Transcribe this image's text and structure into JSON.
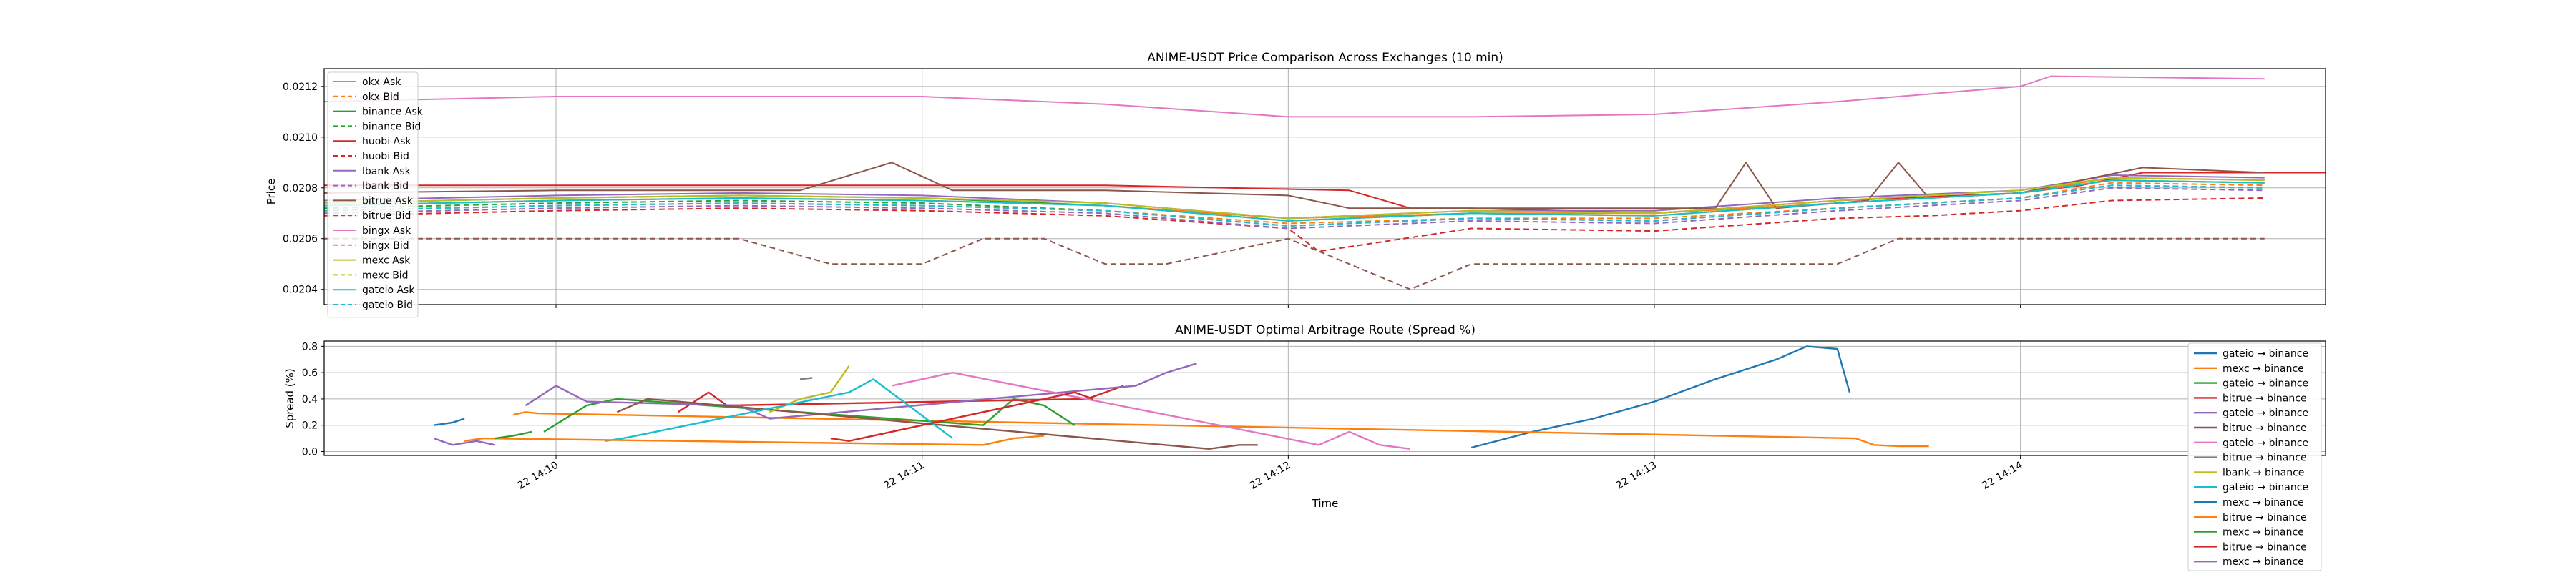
{
  "chart_data": [
    {
      "type": "line",
      "title": "ANIME-USDT Price Comparison Across Exchanges (10 min)",
      "ylabel": "Price",
      "xlabel": "",
      "xlim": [
        "22 14:09:22",
        "22 14:14:50"
      ],
      "ylim": [
        0.02034,
        0.02127
      ],
      "yticks": [
        0.0204,
        0.0206,
        0.0208,
        0.021,
        0.0212
      ],
      "ytick_labels": [
        "0.0204",
        "0.0206",
        "0.0208",
        "0.0210",
        "0.0212"
      ],
      "xticks": [
        "22 14:10",
        "22 14:11",
        "22 14:12",
        "22 14:13",
        "22 14:14"
      ],
      "grid": true,
      "legend_position": "upper-left",
      "series": [
        {
          "name": "okx Ask",
          "color": "#ff7f0e",
          "style": "solid",
          "x": [
            "14:09:22",
            "14:10:00",
            "14:10:30",
            "14:11:00",
            "14:11:30",
            "14:12:00",
            "14:12:30",
            "14:13:00",
            "14:13:30",
            "14:14:00",
            "14:14:15",
            "14:14:40"
          ],
          "y": [
            0.02073,
            0.02075,
            0.02076,
            0.02075,
            0.02073,
            0.02068,
            0.0207,
            0.0207,
            0.02074,
            0.02078,
            0.02084,
            0.02083
          ]
        },
        {
          "name": "okx Bid",
          "color": "#ff7f0e",
          "style": "dashed",
          "x": [
            "14:09:22",
            "14:10:00",
            "14:10:30",
            "14:11:00",
            "14:11:30",
            "14:12:00",
            "14:12:30",
            "14:13:00",
            "14:13:30",
            "14:14:00",
            "14:14:15",
            "14:14:40"
          ],
          "y": [
            0.02071,
            0.02073,
            0.02074,
            0.02073,
            0.02071,
            0.02066,
            0.02068,
            0.02068,
            0.02072,
            0.02076,
            0.02082,
            0.02081
          ]
        },
        {
          "name": "binance Ask",
          "color": "#2ca02c",
          "style": "solid",
          "x": [
            "14:09:22",
            "14:10:00",
            "14:10:30",
            "14:11:00",
            "14:11:30",
            "14:12:00",
            "14:12:30",
            "14:13:00",
            "14:13:30",
            "14:14:00",
            "14:14:15",
            "14:14:40"
          ],
          "y": [
            0.02074,
            0.02076,
            0.02077,
            0.02076,
            0.02073,
            0.02067,
            0.0207,
            0.02069,
            0.02074,
            0.02078,
            0.02083,
            0.02082
          ]
        },
        {
          "name": "binance Bid",
          "color": "#2ca02c",
          "style": "dashed",
          "x": [
            "14:09:22",
            "14:10:00",
            "14:10:30",
            "14:11:00",
            "14:11:30",
            "14:12:00",
            "14:12:30",
            "14:13:00",
            "14:13:30",
            "14:14:00",
            "14:14:15",
            "14:14:40"
          ],
          "y": [
            0.02072,
            0.02074,
            0.02075,
            0.02074,
            0.02071,
            0.02065,
            0.02068,
            0.02067,
            0.02072,
            0.02076,
            0.02081,
            0.0208
          ]
        },
        {
          "name": "huobi Ask",
          "color": "#d62728",
          "style": "solid",
          "x": [
            "14:09:22",
            "14:10:00",
            "14:10:30",
            "14:11:00",
            "14:11:30",
            "14:11:50",
            "14:12:10",
            "14:12:20",
            "14:12:30",
            "14:13:00",
            "14:13:30",
            "14:14:00",
            "14:14:10",
            "14:14:20",
            "14:14:50"
          ],
          "y": [
            0.02081,
            0.02081,
            0.02081,
            0.02081,
            0.02081,
            0.0208,
            0.02079,
            0.02072,
            0.02072,
            0.0207,
            0.02075,
            0.02078,
            0.02081,
            0.02086,
            0.02086
          ]
        },
        {
          "name": "huobi Bid",
          "color": "#d62728",
          "style": "dashed",
          "x": [
            "14:09:22",
            "14:10:00",
            "14:10:30",
            "14:11:00",
            "14:11:30",
            "14:12:00",
            "14:12:05",
            "14:12:30",
            "14:13:00",
            "14:13:30",
            "14:13:45",
            "14:14:00",
            "14:14:15",
            "14:14:40"
          ],
          "y": [
            0.02069,
            0.02071,
            0.02072,
            0.02071,
            0.02069,
            0.02064,
            0.02055,
            0.02064,
            0.02063,
            0.02068,
            0.02069,
            0.02071,
            0.02075,
            0.02076
          ]
        },
        {
          "name": "lbank Ask",
          "color": "#9467bd",
          "style": "solid",
          "x": [
            "14:09:22",
            "14:10:00",
            "14:10:30",
            "14:11:00",
            "14:11:30",
            "14:12:00",
            "14:12:30",
            "14:13:00",
            "14:13:30",
            "14:14:00",
            "14:14:15",
            "14:14:40"
          ],
          "y": [
            0.02075,
            0.02077,
            0.02078,
            0.02077,
            0.02074,
            0.02068,
            0.02071,
            0.02071,
            0.02076,
            0.02079,
            0.02085,
            0.02084
          ]
        },
        {
          "name": "lbank Bid",
          "color": "#9467bd",
          "style": "dashed",
          "x": [
            "14:09:22",
            "14:10:00",
            "14:10:30",
            "14:11:00",
            "14:11:30",
            "14:12:00",
            "14:12:30",
            "14:13:00",
            "14:13:30",
            "14:14:00",
            "14:14:15",
            "14:14:40"
          ],
          "y": [
            0.0207,
            0.02072,
            0.02073,
            0.02072,
            0.0207,
            0.02064,
            0.02067,
            0.02066,
            0.02071,
            0.02075,
            0.0208,
            0.02079
          ]
        },
        {
          "name": "bitrue Ask",
          "color": "#8c564b",
          "style": "solid",
          "x": [
            "14:09:22",
            "14:10:00",
            "14:10:40",
            "14:10:55",
            "14:11:05",
            "14:11:30",
            "14:12:00",
            "14:12:10",
            "14:12:30",
            "14:13:00",
            "14:13:10",
            "14:13:15",
            "14:13:20",
            "14:13:35",
            "14:13:40",
            "14:13:45",
            "14:14:00",
            "14:14:20",
            "14:14:40"
          ],
          "y": [
            0.02078,
            0.02079,
            0.02079,
            0.0209,
            0.02079,
            0.02079,
            0.02077,
            0.02072,
            0.02072,
            0.02072,
            0.02072,
            0.0209,
            0.02072,
            0.02075,
            0.0209,
            0.02076,
            0.02078,
            0.02088,
            0.02086
          ]
        },
        {
          "name": "bitrue Bid",
          "color": "#8c564b",
          "style": "dashed",
          "x": [
            "14:09:22",
            "14:10:30",
            "14:10:45",
            "14:11:00",
            "14:11:10",
            "14:11:20",
            "14:11:30",
            "14:11:40",
            "14:12:00",
            "14:12:20",
            "14:12:30",
            "14:13:00",
            "14:13:30",
            "14:13:40",
            "14:14:00",
            "14:14:40"
          ],
          "y": [
            0.0206,
            0.0206,
            0.0205,
            0.0205,
            0.0206,
            0.0206,
            0.0205,
            0.0205,
            0.0206,
            0.0204,
            0.0205,
            0.0205,
            0.0205,
            0.0206,
            0.0206,
            0.0206
          ]
        },
        {
          "name": "bingx Ask",
          "color": "#e377c2",
          "style": "solid",
          "x": [
            "14:09:22",
            "14:10:00",
            "14:10:30",
            "14:11:00",
            "14:11:30",
            "14:12:00",
            "14:12:30",
            "14:13:00",
            "14:13:30",
            "14:14:00",
            "14:14:05",
            "14:14:40"
          ],
          "y": [
            0.02114,
            0.02116,
            0.02116,
            0.02116,
            0.02113,
            0.02108,
            0.02108,
            0.02109,
            0.02114,
            0.0212,
            0.02124,
            0.02123
          ]
        },
        {
          "name": "bingx Bid",
          "color": "#e377c2",
          "style": "dashed",
          "x": [
            "14:09:22",
            "14:10:00",
            "14:10:30",
            "14:11:00",
            "14:11:30",
            "14:12:00",
            "14:12:30",
            "14:13:00",
            "14:13:30",
            "14:14:00",
            "14:14:15",
            "14:14:40"
          ],
          "y": [
            0.02071,
            0.02073,
            0.02074,
            0.02073,
            0.02071,
            0.02065,
            0.02068,
            0.02067,
            0.02072,
            0.02076,
            0.02081,
            0.0208
          ]
        },
        {
          "name": "mexc Ask",
          "color": "#bcbd22",
          "style": "solid",
          "x": [
            "14:09:22",
            "14:10:00",
            "14:10:30",
            "14:11:00",
            "14:11:30",
            "14:12:00",
            "14:12:30",
            "14:13:00",
            "14:13:30",
            "14:14:00",
            "14:14:15",
            "14:14:40"
          ],
          "y": [
            0.02074,
            0.02076,
            0.02077,
            0.02076,
            0.02074,
            0.02068,
            0.02071,
            0.0207,
            0.02075,
            0.02079,
            0.02084,
            0.02083
          ]
        },
        {
          "name": "mexc Bid",
          "color": "#bcbd22",
          "style": "dashed",
          "x": [
            "14:09:22",
            "14:10:00",
            "14:10:30",
            "14:11:00",
            "14:11:30",
            "14:12:00",
            "14:12:30",
            "14:13:00",
            "14:13:30",
            "14:14:00",
            "14:14:15",
            "14:14:40"
          ],
          "y": [
            0.02073,
            0.02075,
            0.02076,
            0.02075,
            0.02073,
            0.02067,
            0.0207,
            0.02069,
            0.02074,
            0.02078,
            0.02083,
            0.02082
          ]
        },
        {
          "name": "gateio Ask",
          "color": "#17becf",
          "style": "solid",
          "x": [
            "14:09:22",
            "14:10:00",
            "14:10:30",
            "14:11:00",
            "14:11:30",
            "14:12:00",
            "14:12:30",
            "14:13:00",
            "14:13:30",
            "14:14:00",
            "14:14:15",
            "14:14:40"
          ],
          "y": [
            0.02073,
            0.02075,
            0.02076,
            0.02075,
            0.02073,
            0.02067,
            0.0207,
            0.02069,
            0.02074,
            0.02078,
            0.02083,
            0.02082
          ]
        },
        {
          "name": "gateio Bid",
          "color": "#17becf",
          "style": "dashed",
          "x": [
            "14:09:22",
            "14:10:00",
            "14:10:30",
            "14:11:00",
            "14:11:30",
            "14:12:00",
            "14:12:30",
            "14:13:00",
            "14:13:30",
            "14:14:00",
            "14:14:15",
            "14:14:40"
          ],
          "y": [
            0.02071,
            0.02073,
            0.02074,
            0.02073,
            0.02071,
            0.02065,
            0.02068,
            0.02067,
            0.02072,
            0.02076,
            0.02081,
            0.0208
          ]
        }
      ]
    },
    {
      "type": "line",
      "title": "ANIME-USDT Optimal Arbitrage Route (Spread %)",
      "xlabel": "Time",
      "ylabel": "Spread (%)",
      "xlim": [
        "22 14:09:22",
        "22 14:14:50"
      ],
      "ylim": [
        -0.03,
        0.84
      ],
      "yticks": [
        0.0,
        0.2,
        0.4,
        0.6,
        0.8
      ],
      "ytick_labels": [
        "0.0",
        "0.2",
        "0.4",
        "0.6",
        "0.8"
      ],
      "xticks": [
        "22 14:10",
        "22 14:11",
        "22 14:12",
        "22 14:13",
        "22 14:14"
      ],
      "grid": true,
      "legend_position": "right",
      "series": [
        {
          "name": "gateio → binance",
          "color": "#1f77b4",
          "x": [
            "14:12:30",
            "14:12:40",
            "14:12:50",
            "14:13:00",
            "14:13:10",
            "14:13:20",
            "14:13:25",
            "14:13:30",
            "14:13:32"
          ],
          "y": [
            0.03,
            0.15,
            0.25,
            0.38,
            0.55,
            0.7,
            0.8,
            0.78,
            0.45
          ]
        },
        {
          "name": "mexc → binance",
          "color": "#ff7f0e",
          "x": [
            "14:09:53",
            "14:09:55",
            "14:09:57",
            "14:13:33",
            "14:13:36",
            "14:13:40",
            "14:13:45"
          ],
          "y": [
            0.28,
            0.3,
            0.29,
            0.1,
            0.05,
            0.04,
            0.04
          ]
        },
        {
          "name": "gateio → binance",
          "color": "#2ca02c",
          "x": [
            "14:09:58",
            "14:10:05",
            "14:10:10",
            "14:11:10",
            "14:11:15",
            "14:11:20",
            "14:11:25"
          ],
          "y": [
            0.15,
            0.35,
            0.4,
            0.2,
            0.4,
            0.35,
            0.2
          ]
        },
        {
          "name": "bitrue → binance",
          "color": "#d62728",
          "x": [
            "14:10:20",
            "14:10:25",
            "14:10:28",
            "14:11:27",
            "14:11:30",
            "14:11:33"
          ],
          "y": [
            0.3,
            0.45,
            0.35,
            0.4,
            0.45,
            0.5
          ]
        },
        {
          "name": "gateio → binance",
          "color": "#9467bd",
          "x": [
            "14:09:55",
            "14:10:00",
            "14:10:05",
            "14:10:30",
            "14:10:35",
            "14:11:35",
            "14:11:40",
            "14:11:45"
          ],
          "y": [
            0.35,
            0.5,
            0.38,
            0.35,
            0.25,
            0.5,
            0.6,
            0.67
          ]
        },
        {
          "name": "bitrue → binance",
          "color": "#8c564b",
          "x": [
            "14:10:10",
            "14:10:15",
            "14:10:20",
            "14:11:47",
            "14:11:52",
            "14:11:55"
          ],
          "y": [
            0.3,
            0.4,
            0.38,
            0.02,
            0.05,
            0.05
          ]
        },
        {
          "name": "gateio → binance",
          "color": "#e377c2",
          "x": [
            "14:10:55",
            "14:11:00",
            "14:11:05",
            "14:12:05",
            "14:12:10",
            "14:12:15",
            "14:12:20"
          ],
          "y": [
            0.5,
            0.55,
            0.6,
            0.05,
            0.15,
            0.05,
            0.02
          ]
        },
        {
          "name": "bitrue → binance",
          "color": "#7f7f7f",
          "x": [
            "14:10:40",
            "14:10:42"
          ],
          "y": [
            0.55,
            0.56
          ]
        },
        {
          "name": "lbank → binance",
          "color": "#bcbd22",
          "x": [
            "14:10:35",
            "14:10:40",
            "14:10:45",
            "14:10:48"
          ],
          "y": [
            0.3,
            0.4,
            0.45,
            0.65
          ]
        },
        {
          "name": "gateio → binance",
          "color": "#17becf",
          "x": [
            "14:10:08",
            "14:10:11",
            "14:10:48",
            "14:10:52",
            "14:11:05"
          ],
          "y": [
            0.08,
            0.1,
            0.45,
            0.55,
            0.1
          ]
        },
        {
          "name": "mexc → binance",
          "color": "#1f77b4",
          "x": [
            "14:09:40",
            "14:09:43",
            "14:09:45"
          ],
          "y": [
            0.2,
            0.22,
            0.25
          ]
        },
        {
          "name": "bitrue → binance",
          "color": "#ff7f0e",
          "x": [
            "14:09:45",
            "14:09:48",
            "14:11:10",
            "14:11:15",
            "14:11:20"
          ],
          "y": [
            0.08,
            0.1,
            0.05,
            0.1,
            0.12
          ]
        },
        {
          "name": "mexc → binance",
          "color": "#2ca02c",
          "x": [
            "14:09:50",
            "14:09:53",
            "14:09:56"
          ],
          "y": [
            0.1,
            0.12,
            0.15
          ]
        },
        {
          "name": "bitrue → binance",
          "color": "#d62728",
          "x": [
            "14:10:45",
            "14:10:48",
            "14:11:25",
            "14:11:28"
          ],
          "y": [
            0.1,
            0.08,
            0.45,
            0.4
          ]
        },
        {
          "name": "mexc → binance",
          "color": "#9467bd",
          "x": [
            "14:09:40",
            "14:09:43",
            "14:09:47",
            "14:09:50"
          ],
          "y": [
            0.1,
            0.05,
            0.08,
            0.05
          ]
        }
      ]
    }
  ]
}
